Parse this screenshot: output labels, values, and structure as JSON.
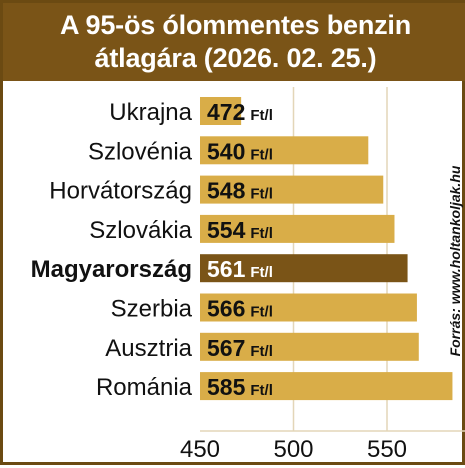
{
  "header": {
    "title_line1": "A 95-ös ólommentes benzin",
    "title_line2": "átlagára (2026. 02. 25.)"
  },
  "source": "Forrás: www.holtankoljak.hu",
  "colors": {
    "header_bg": "#7a5417",
    "bar": "#d9ad48",
    "bar_highlight": "#7a5417",
    "grid": "#e3d6b8",
    "text": "#111111"
  },
  "chart_data": {
    "type": "bar",
    "orientation": "horizontal",
    "categories": [
      "Ukrajna",
      "Szlovénia",
      "Horvátország",
      "Szlovákia",
      "Magyarország",
      "Szerbia",
      "Ausztria",
      "Románia"
    ],
    "values": [
      472,
      540,
      548,
      554,
      561,
      566,
      567,
      585
    ],
    "highlight": "Magyarország",
    "value_unit": "Ft/l",
    "xlim": [
      450,
      585
    ],
    "xticks": [
      450,
      500,
      550
    ],
    "grid": true,
    "title": "A 95-ös ólommentes benzin átlagára (2026. 02. 25.)"
  }
}
